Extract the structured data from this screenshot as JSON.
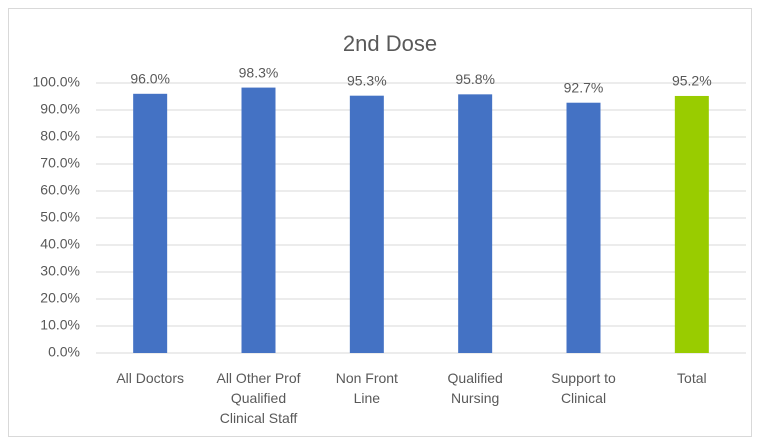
{
  "chart_data": {
    "type": "bar",
    "title": "2nd Dose",
    "categories": [
      "All Doctors",
      "All Other Prof Qualified Clinical Staff",
      "Non Front Line",
      "Qualified Nursing",
      "Support to Clinical",
      "Total"
    ],
    "values": [
      96.0,
      98.3,
      95.3,
      95.8,
      92.7,
      95.2
    ],
    "value_labels": [
      "96.0%",
      "98.3%",
      "95.3%",
      "95.8%",
      "92.7%",
      "95.2%"
    ],
    "colors": [
      "#4472c4",
      "#4472c4",
      "#4472c4",
      "#4472c4",
      "#4472c4",
      "#99cc00"
    ],
    "ylim": [
      0,
      100
    ],
    "yticks": [
      {
        "value": 0,
        "label": "0.0%"
      },
      {
        "value": 10,
        "label": "10.0%"
      },
      {
        "value": 20,
        "label": "20.0%"
      },
      {
        "value": 30,
        "label": "30.0%"
      },
      {
        "value": 40,
        "label": "40.0%"
      },
      {
        "value": 50,
        "label": "50.0%"
      },
      {
        "value": 60,
        "label": "60.0%"
      },
      {
        "value": 70,
        "label": "70.0%"
      },
      {
        "value": 80,
        "label": "80.0%"
      },
      {
        "value": 90,
        "label": "90.0%"
      },
      {
        "value": 100,
        "label": "100.0%"
      }
    ],
    "grid": true
  }
}
